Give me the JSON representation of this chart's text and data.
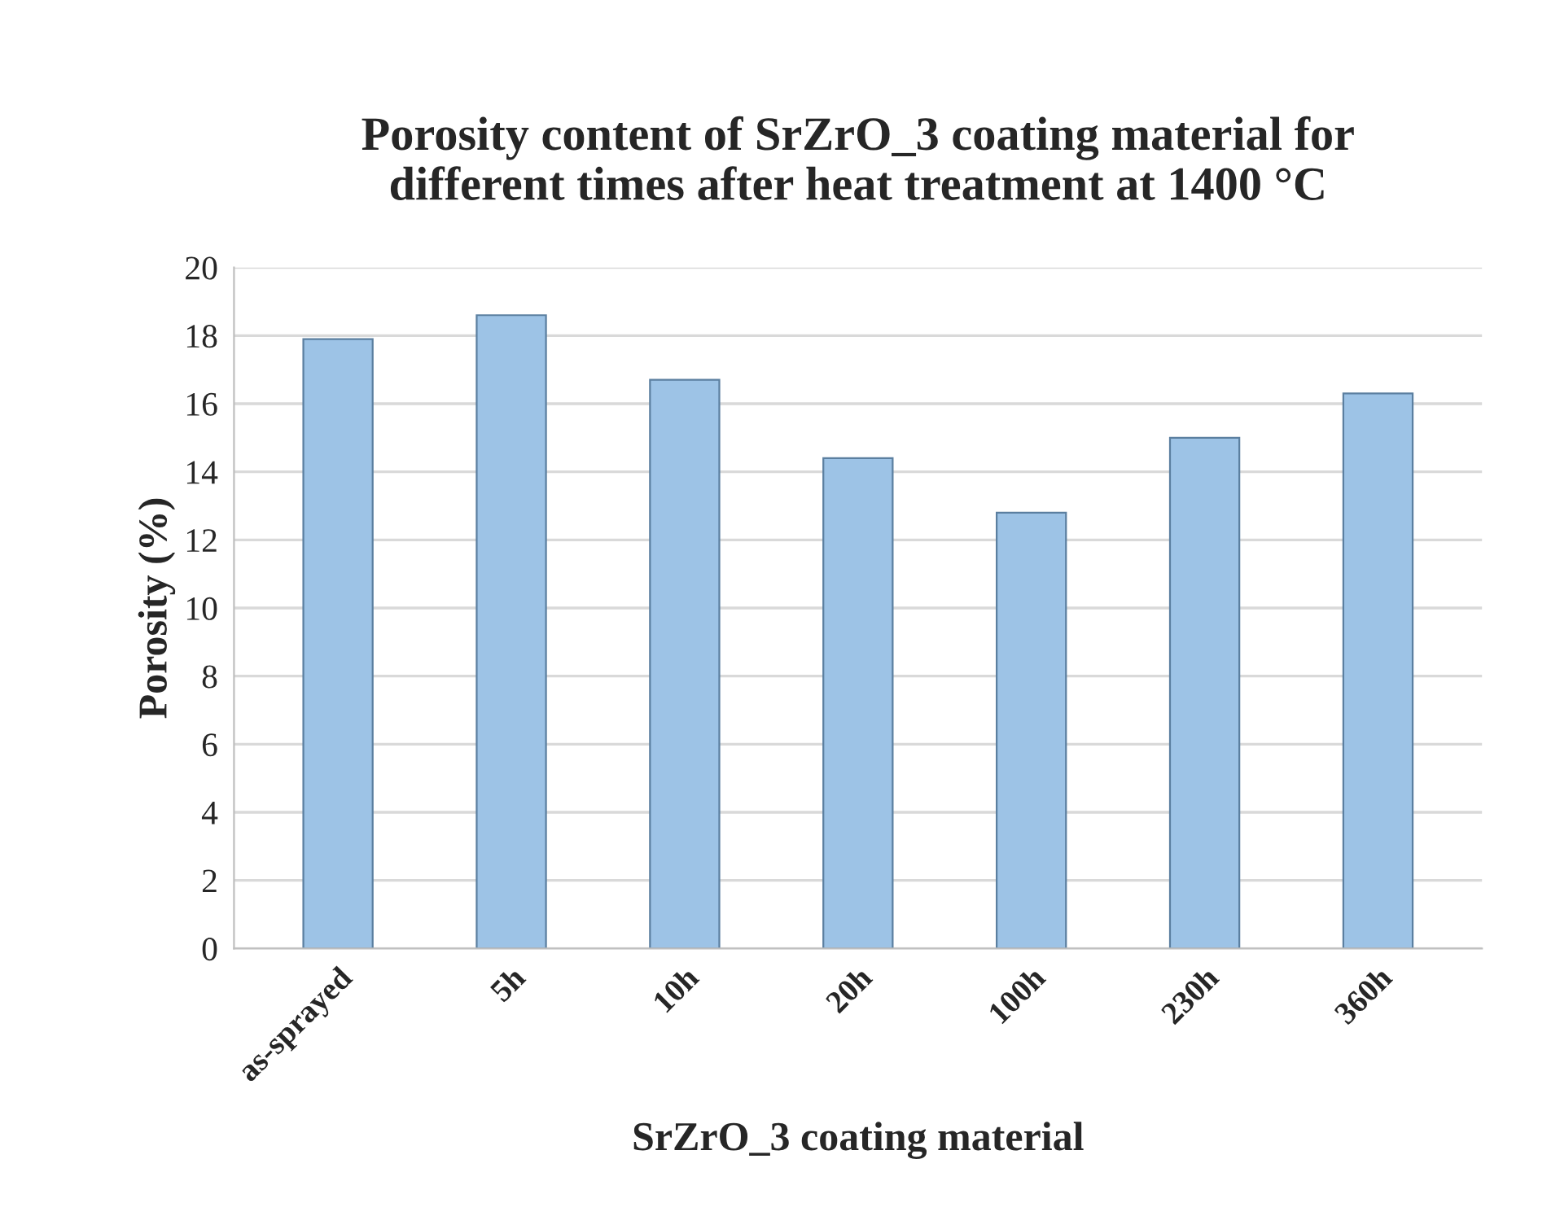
{
  "chart_data": {
    "type": "bar",
    "title": "Porosity content of SrZrO_3 coating material for\ndifferent times after heat treatment at 1400 °C",
    "xlabel": "SrZrO_3 coating material",
    "ylabel": "Porosity (%)",
    "categories": [
      "as-sprayed",
      "5h",
      "10h",
      "20h",
      "100h",
      "230h",
      "360h"
    ],
    "values": [
      17.9,
      18.6,
      16.7,
      14.4,
      12.8,
      15.0,
      16.3
    ],
    "color": "#9dc3e6",
    "ylim": [
      0,
      20
    ],
    "yticks": [
      0,
      2,
      4,
      6,
      8,
      10,
      12,
      14,
      16,
      18,
      20
    ],
    "grid": "y"
  }
}
